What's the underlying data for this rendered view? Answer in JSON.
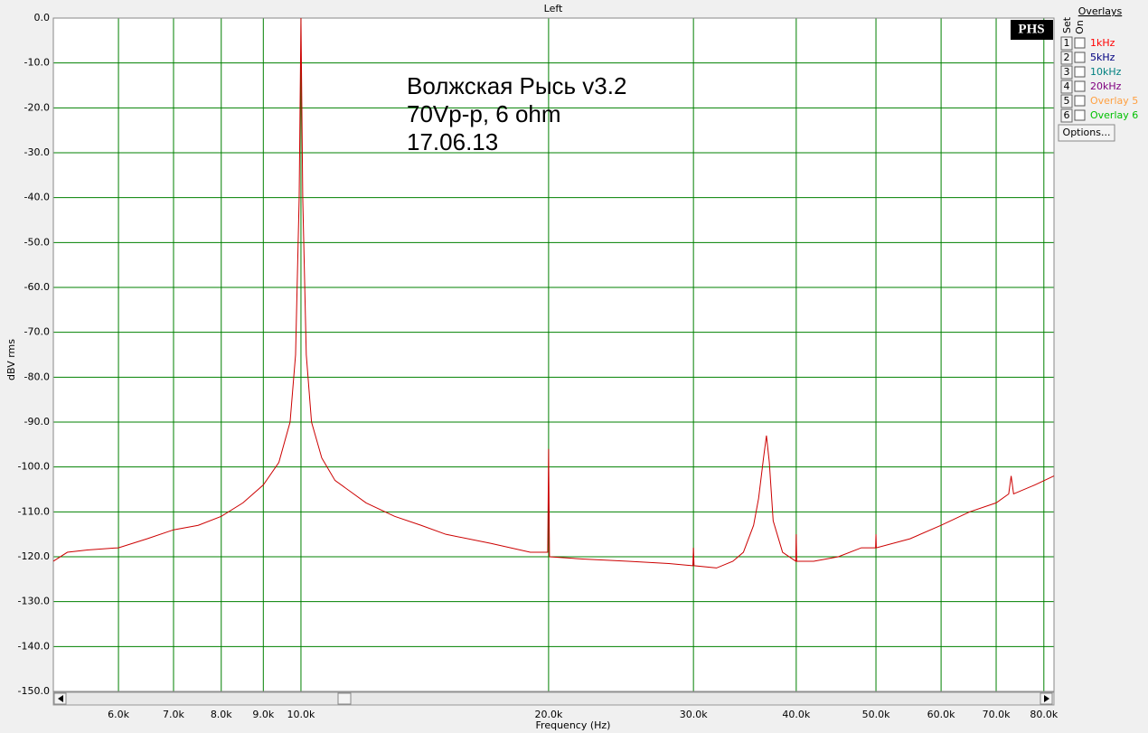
{
  "chart_data": {
    "type": "line",
    "title": "Left",
    "x_label": "Frequency (Hz)",
    "y_label": "dBV rms",
    "annotation": [
      "Волжская Рысь v3.2",
      "70Vp-p, 6 ohm",
      "17.06.13"
    ],
    "logo": "PHS",
    "log_x": true,
    "grid": true,
    "grid_color": "#008000",
    "color": "#cc0000",
    "xlim": [
      5000,
      82300
    ],
    "ylim": [
      -150,
      0
    ],
    "xticks": [
      {
        "value": 6000,
        "label": "6.0k"
      },
      {
        "value": 7000,
        "label": "7.0k"
      },
      {
        "value": 8000,
        "label": "8.0k"
      },
      {
        "value": 9000,
        "label": "9.0k"
      },
      {
        "value": 10000,
        "label": "10.0k"
      },
      {
        "value": 20000,
        "label": "20.0k"
      },
      {
        "value": 30000,
        "label": "30.0k"
      },
      {
        "value": 40000,
        "label": "40.0k"
      },
      {
        "value": 50000,
        "label": "50.0k"
      },
      {
        "value": 60000,
        "label": "60.0k"
      },
      {
        "value": 70000,
        "label": "70.0k"
      },
      {
        "value": 80000,
        "label": "80.0k"
      }
    ],
    "yticks": [
      {
        "value": 0,
        "label": "0.0"
      },
      {
        "value": -10,
        "label": "-10.0"
      },
      {
        "value": -20,
        "label": "-20.0"
      },
      {
        "value": -30,
        "label": "-30.0"
      },
      {
        "value": -40,
        "label": "-40.0"
      },
      {
        "value": -50,
        "label": "-50.0"
      },
      {
        "value": -60,
        "label": "-60.0"
      },
      {
        "value": -70,
        "label": "-70.0"
      },
      {
        "value": -80,
        "label": "-80.0"
      },
      {
        "value": -90,
        "label": "-90.0"
      },
      {
        "value": -100,
        "label": "-100.0"
      },
      {
        "value": -110,
        "label": "-110.0"
      },
      {
        "value": -120,
        "label": "-120.0"
      },
      {
        "value": -130,
        "label": "-130.0"
      },
      {
        "value": -140,
        "label": "-140.0"
      },
      {
        "value": -150,
        "label": "-150.0"
      }
    ],
    "x": [
      5000,
      5200,
      5500,
      6000,
      6500,
      7000,
      7500,
      8000,
      8500,
      9000,
      9400,
      9700,
      9850,
      9950,
      10000,
      10050,
      10150,
      10300,
      10600,
      11000,
      12000,
      13000,
      14000,
      15000,
      17000,
      19000,
      19950,
      20000,
      20050,
      22000,
      25000,
      28000,
      29950,
      30000,
      30050,
      32000,
      33500,
      34500,
      35500,
      36000,
      36500,
      36800,
      37100,
      37500,
      38500,
      39950,
      40000,
      40050,
      42000,
      45000,
      48000,
      49950,
      50000,
      50050,
      55000,
      60000,
      65000,
      70000,
      72500,
      73000,
      73500,
      78000,
      82300
    ],
    "values": [
      -121,
      -119,
      -118.5,
      -118,
      -116,
      -114,
      -113,
      -111,
      -108,
      -104,
      -99,
      -90,
      -75,
      -40,
      0,
      -40,
      -75,
      -90,
      -98,
      -103,
      -108,
      -111,
      -113,
      -115,
      -117,
      -119,
      -119,
      -96,
      -120,
      -120.5,
      -121,
      -121.5,
      -122,
      -118,
      -122,
      -122.5,
      -121,
      -119,
      -113,
      -107,
      -98,
      -93,
      -99,
      -112,
      -119,
      -121,
      -115,
      -121,
      -121,
      -120,
      -118,
      -118,
      -115,
      -118,
      -116,
      -113,
      -110,
      -108,
      -106,
      -102,
      -106,
      -104,
      -102
    ]
  },
  "overlays": {
    "title": "Overlays",
    "set_label": "Set",
    "on_label": "On",
    "button": "Options...",
    "items": [
      {
        "number": 1,
        "name": "1kHz",
        "color": "#ff0000"
      },
      {
        "number": 2,
        "name": "5kHz",
        "color": "#000080"
      },
      {
        "number": 3,
        "name": "10kHz",
        "color": "#008080"
      },
      {
        "number": 4,
        "name": "20kHz",
        "color": "#800080"
      },
      {
        "number": 5,
        "name": "Overlay 5",
        "color": "#ffa040"
      },
      {
        "number": 6,
        "name": "Overlay 6",
        "color": "#00c000"
      }
    ]
  }
}
